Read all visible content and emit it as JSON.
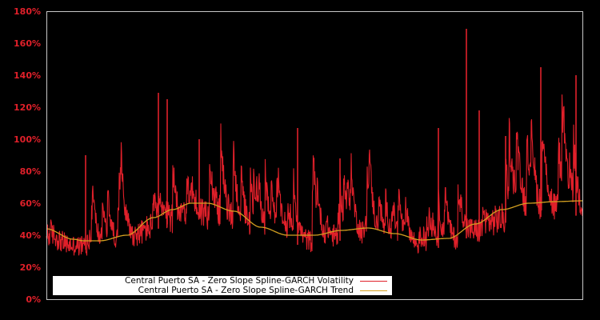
{
  "chart_data": {
    "type": "line",
    "title": "",
    "xlabel": "",
    "ylabel": "",
    "ylim": [
      0,
      180
    ],
    "yticks": [
      "0%",
      "20%",
      "40%",
      "60%",
      "80%",
      "100%",
      "120%",
      "140%",
      "160%",
      "180%"
    ],
    "grid": false,
    "legend_position": "lower left",
    "series": [
      {
        "name": "Central Puerto SA - Zero Slope Spline-GARCH Volatility",
        "color": "#e0202a",
        "approx_baseline_trend_offset": "noisy around trend, typical range 25%-90%",
        "notable_peaks": [
          {
            "x_frac": 0.073,
            "value": 90
          },
          {
            "x_frac": 0.209,
            "value": 129
          },
          {
            "x_frac": 0.226,
            "value": 125
          },
          {
            "x_frac": 0.285,
            "value": 100
          },
          {
            "x_frac": 0.469,
            "value": 107
          },
          {
            "x_frac": 0.548,
            "value": 88
          },
          {
            "x_frac": 0.731,
            "value": 107
          },
          {
            "x_frac": 0.784,
            "value": 169
          },
          {
            "x_frac": 0.807,
            "value": 118
          },
          {
            "x_frac": 0.857,
            "value": 102
          },
          {
            "x_frac": 0.922,
            "value": 145
          },
          {
            "x_frac": 0.988,
            "value": 140
          }
        ]
      },
      {
        "name": "Central Puerto SA - Zero Slope Spline-GARCH Trend",
        "color": "#d4a020",
        "x_frac": [
          0.0,
          0.05,
          0.07,
          0.1,
          0.15,
          0.2,
          0.235,
          0.27,
          0.3,
          0.35,
          0.4,
          0.45,
          0.5,
          0.55,
          0.6,
          0.65,
          0.7,
          0.75,
          0.8,
          0.85,
          0.9,
          0.95,
          1.0
        ],
        "values": [
          44,
          37.5,
          36.5,
          36.5,
          40,
          51,
          56,
          60,
          60,
          55,
          45,
          40,
          40,
          43,
          44.5,
          41,
          37,
          38,
          47,
          56,
          60,
          61,
          61.5
        ]
      }
    ]
  },
  "legend": {
    "volatility_label": "Central Puerto SA - Zero Slope Spline-GARCH Volatility",
    "trend_label": "Central Puerto SA - Zero Slope Spline-GARCH Trend"
  },
  "colors": {
    "background": "#000000",
    "axis": "#c8c8c8",
    "volatility": "#e0202a",
    "trend": "#d4a020",
    "tick_label": "#e0202a"
  }
}
